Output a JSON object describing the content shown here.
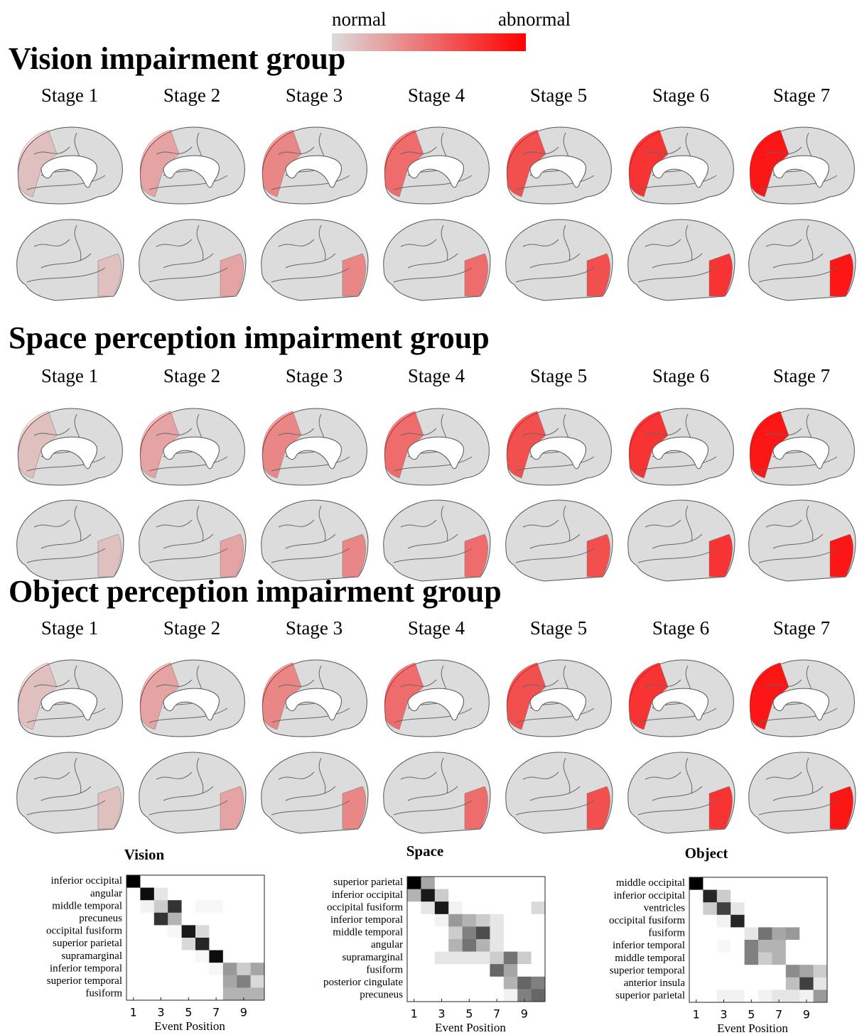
{
  "colorbar": {
    "low": "normal",
    "high": "abnormal"
  },
  "groups": [
    {
      "title": "Vision impairment group",
      "stages": [
        "Stage 1",
        "Stage 2",
        "Stage 3",
        "Stage 4",
        "Stage 5",
        "Stage 6",
        "Stage 7"
      ]
    },
    {
      "title": "Space perception impairment group",
      "stages": [
        "Stage 1",
        "Stage 2",
        "Stage 3",
        "Stage 4",
        "Stage 5",
        "Stage 6",
        "Stage 7"
      ]
    },
    {
      "title": "Object perception impairment group",
      "stages": [
        "Stage 1",
        "Stage 2",
        "Stage 3",
        "Stage 4",
        "Stage 5",
        "Stage 6",
        "Stage 7"
      ]
    }
  ],
  "chart_data": [
    {
      "type": "heatmap",
      "title": "Vision",
      "xlabel": "Event Position",
      "xlim": [
        0.5,
        10.5
      ],
      "xticks": [
        1,
        3,
        5,
        7,
        9
      ],
      "rows": [
        "inferior occipital",
        "angular",
        "middle temporal",
        "precuneus",
        "occipital fusiform",
        "superior parietal",
        "supramarginal",
        "inferior temporal",
        "superior temporal",
        "fusiform"
      ],
      "values": [
        [
          1,
          0,
          0,
          0,
          0,
          0,
          0,
          0,
          0,
          0
        ],
        [
          0,
          0.95,
          0.1,
          0,
          0,
          0,
          0,
          0,
          0,
          0
        ],
        [
          0,
          0.05,
          0.2,
          0.8,
          0,
          0.03,
          0.03,
          0,
          0,
          0
        ],
        [
          0,
          0,
          0.8,
          0.3,
          0,
          0,
          0,
          0,
          0,
          0
        ],
        [
          0,
          0,
          0,
          0.03,
          0.9,
          0.15,
          0,
          0,
          0,
          0
        ],
        [
          0,
          0,
          0,
          0,
          0.15,
          0.85,
          0,
          0,
          0,
          0
        ],
        [
          0,
          0,
          0,
          0,
          0,
          0.03,
          0.95,
          0,
          0,
          0
        ],
        [
          0,
          0,
          0,
          0,
          0,
          0,
          0.03,
          0.4,
          0.2,
          0.35
        ],
        [
          0,
          0,
          0,
          0,
          0,
          0,
          0,
          0.35,
          0.5,
          0.15
        ],
        [
          0,
          0,
          0,
          0,
          0,
          0,
          0,
          0.3,
          0.3,
          0.3
        ]
      ]
    },
    {
      "type": "heatmap",
      "title": "Space",
      "xlabel": "Event Position",
      "xlim": [
        0.5,
        10.5
      ],
      "xticks": [
        1,
        3,
        5,
        7,
        9
      ],
      "rows": [
        "superior parietal",
        "inferior occipital",
        "occipital fusiform",
        "inferior temporal",
        "middle temporal",
        "angular",
        "supramarginal",
        "fusiform",
        "posterior cingulate",
        "precuneus"
      ],
      "values": [
        [
          1,
          0.35,
          0,
          0,
          0,
          0,
          0,
          0,
          0,
          0
        ],
        [
          0.3,
          0.9,
          0.2,
          0,
          0,
          0,
          0,
          0,
          0,
          0
        ],
        [
          0,
          0.1,
          0.9,
          0.05,
          0,
          0,
          0,
          0,
          0,
          0.15
        ],
        [
          0,
          0,
          0.05,
          0.4,
          0.3,
          0.2,
          0.1,
          0,
          0,
          0
        ],
        [
          0,
          0,
          0,
          0.2,
          0.5,
          0.7,
          0.1,
          0,
          0,
          0
        ],
        [
          0,
          0,
          0,
          0.3,
          0.55,
          0.3,
          0.1,
          0,
          0,
          0
        ],
        [
          0,
          0,
          0.1,
          0.1,
          0.1,
          0.1,
          0.2,
          0.55,
          0.2,
          0
        ],
        [
          0,
          0,
          0,
          0,
          0,
          0,
          0.6,
          0.35,
          0,
          0
        ],
        [
          0,
          0,
          0,
          0,
          0,
          0,
          0,
          0.3,
          0.6,
          0.5
        ],
        [
          0,
          0,
          0,
          0,
          0,
          0,
          0,
          0.05,
          0.5,
          0.6
        ]
      ]
    },
    {
      "type": "heatmap",
      "title": "Object",
      "xlabel": "Event Position",
      "xlim": [
        0.5,
        10.5
      ],
      "xticks": [
        1,
        3,
        5,
        7,
        9
      ],
      "rows": [
        "middle occipital",
        "inferior occipital",
        "ventricles",
        "occipital fusiform",
        "fusiform",
        "inferior temporal",
        "middle temporal",
        "superior temporal",
        "anterior insula",
        "superior parietal"
      ],
      "values": [
        [
          1,
          0,
          0,
          0,
          0,
          0,
          0,
          0,
          0,
          0
        ],
        [
          0,
          0.85,
          0.2,
          0,
          0,
          0,
          0,
          0,
          0,
          0
        ],
        [
          0,
          0.2,
          0.75,
          0.1,
          0,
          0,
          0,
          0,
          0,
          0
        ],
        [
          0,
          0,
          0.05,
          0.85,
          0,
          0,
          0,
          0,
          0,
          0
        ],
        [
          0,
          0,
          0,
          0,
          0.1,
          0.55,
          0.35,
          0.4,
          0,
          0
        ],
        [
          0,
          0,
          0.03,
          0,
          0.5,
          0.3,
          0.3,
          0,
          0,
          0
        ],
        [
          0,
          0,
          0,
          0,
          0.5,
          0.2,
          0.3,
          0,
          0,
          0
        ],
        [
          0,
          0,
          0,
          0,
          0,
          0,
          0,
          0.45,
          0.35,
          0.2
        ],
        [
          0,
          0,
          0,
          0,
          0,
          0,
          0,
          0.25,
          0.75,
          0.1
        ],
        [
          0,
          0,
          0.05,
          0.05,
          0,
          0.05,
          0.1,
          0.1,
          0.05,
          0.4
        ]
      ]
    }
  ]
}
